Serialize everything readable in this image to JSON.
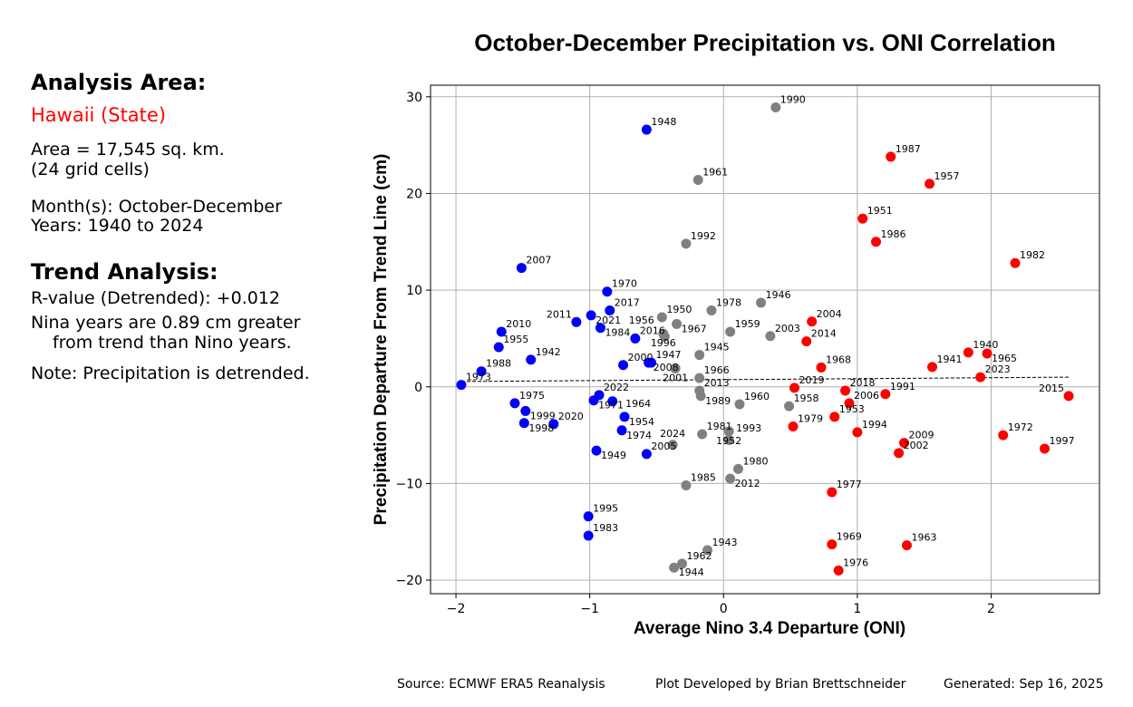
{
  "sidebar": {
    "area_heading": "Analysis Area:",
    "area_name": "Hawaii (State)",
    "area_size": "Area = 17,545 sq. km.",
    "grid_cells": "(24 grid cells)",
    "months": "Month(s): October-December",
    "years": "Years: 1940 to 2024",
    "trend_heading": "Trend Analysis:",
    "r_value": "R-value (Detrended): +0.012",
    "nina_line1": "Nina years are 0.89 cm greater",
    "nina_line2": "from trend than Nino years.",
    "note": "Note: Precipitation is detrended."
  },
  "footer": {
    "source": "Source: ECMWF ERA5 Reanalysis",
    "developer": "Plot Developed by Brian Brettschneider",
    "generated": "Generated: Sep 16, 2025"
  },
  "colors": {
    "nina": "#0000ff",
    "neutral": "#808080",
    "nino": "#ff0000",
    "area_name": "#ff0000"
  },
  "chart_data": {
    "type": "scatter",
    "title": "October-December Precipitation vs. ONI Correlation",
    "xlabel": "Average Nino 3.4 Departure (ONI)",
    "ylabel": "Precipitation Departure From Trend Line (cm)",
    "xlim": [
      -2.19,
      2.81
    ],
    "ylim": [
      -21.4,
      31.2
    ],
    "xticks": [
      -2,
      -1,
      0,
      1,
      2
    ],
    "yticks": [
      -20,
      -10,
      0,
      10,
      20,
      30
    ],
    "grid": true,
    "trend_line": {
      "x": [
        -1.96,
        2.58
      ],
      "y": [
        0.55,
        1.0
      ],
      "style": "dashed"
    },
    "points": [
      {
        "year": "1948",
        "oni": -0.575,
        "precip": 26.6,
        "phase": "nina"
      },
      {
        "year": "2007",
        "oni": -1.51,
        "precip": 12.3,
        "phase": "nina"
      },
      {
        "year": "1970",
        "oni": -0.87,
        "precip": 9.85,
        "phase": "nina"
      },
      {
        "year": "2017",
        "oni": -0.85,
        "precip": 7.9,
        "phase": "nina"
      },
      {
        "year": "2021",
        "oni": -0.99,
        "precip": 7.4,
        "phase": "nina"
      },
      {
        "year": "2011",
        "oni": -1.1,
        "precip": 6.7,
        "phase": "nina"
      },
      {
        "year": "1984",
        "oni": -0.92,
        "precip": 6.1,
        "phase": "nina"
      },
      {
        "year": "2010",
        "oni": -1.66,
        "precip": 5.7,
        "phase": "nina"
      },
      {
        "year": "1955",
        "oni": -1.68,
        "precip": 4.1,
        "phase": "nina"
      },
      {
        "year": "1942",
        "oni": -1.44,
        "precip": 2.8,
        "phase": "nina"
      },
      {
        "year": "1988",
        "oni": -1.81,
        "precip": 1.6,
        "phase": "nina"
      },
      {
        "year": "1973",
        "oni": -1.96,
        "precip": 0.2,
        "phase": "nina"
      },
      {
        "year": "2016",
        "oni": -0.66,
        "precip": 5.0,
        "phase": "nina"
      },
      {
        "year": "2000",
        "oni": -0.75,
        "precip": 2.25,
        "phase": "nina"
      },
      {
        "year": "2008",
        "oni": -0.56,
        "precip": 2.5,
        "phase": "nina"
      },
      {
        "year": "1947",
        "oni": -0.54,
        "precip": 2.5,
        "phase": "nina"
      },
      {
        "year": "1975",
        "oni": -1.56,
        "precip": -1.7,
        "phase": "nina"
      },
      {
        "year": "1999",
        "oni": -1.48,
        "precip": -2.5,
        "phase": "nina"
      },
      {
        "year": "1998",
        "oni": -1.49,
        "precip": -3.75,
        "phase": "nina"
      },
      {
        "year": "2020",
        "oni": -1.27,
        "precip": -3.85,
        "phase": "nina"
      },
      {
        "year": "2022",
        "oni": -0.93,
        "precip": -0.85,
        "phase": "nina"
      },
      {
        "year": "1971",
        "oni": -0.97,
        "precip": -1.4,
        "phase": "nina"
      },
      {
        "year": "1964",
        "oni": -0.83,
        "precip": -1.5,
        "phase": "nina"
      },
      {
        "year": "1954",
        "oni": -0.74,
        "precip": -3.1,
        "phase": "nina"
      },
      {
        "year": "1974",
        "oni": -0.76,
        "precip": -4.5,
        "phase": "nina"
      },
      {
        "year": "1949",
        "oni": -0.95,
        "precip": -6.6,
        "phase": "nina"
      },
      {
        "year": "2005",
        "oni": -0.575,
        "precip": -6.95,
        "phase": "nina"
      },
      {
        "year": "1995",
        "oni": -1.01,
        "precip": -13.4,
        "phase": "nina"
      },
      {
        "year": "1983",
        "oni": -1.01,
        "precip": -15.4,
        "phase": "nina"
      },
      {
        "year": "1990",
        "oni": 0.39,
        "precip": 28.9,
        "phase": "neutral"
      },
      {
        "year": "1961",
        "oni": -0.19,
        "precip": 21.4,
        "phase": "neutral"
      },
      {
        "year": "1992",
        "oni": -0.28,
        "precip": 14.8,
        "phase": "neutral"
      },
      {
        "year": "1946",
        "oni": 0.28,
        "precip": 8.7,
        "phase": "neutral"
      },
      {
        "year": "1978",
        "oni": -0.09,
        "precip": 7.9,
        "phase": "neutral"
      },
      {
        "year": "1950",
        "oni": -0.46,
        "precip": 7.2,
        "phase": "neutral"
      },
      {
        "year": "1967",
        "oni": -0.35,
        "precip": 6.5,
        "phase": "neutral"
      },
      {
        "year": "1996",
        "oni": -0.45,
        "precip": 5.5,
        "phase": "neutral"
      },
      {
        "year": "1956",
        "oni": -0.44,
        "precip": 5.2,
        "phase": "neutral"
      },
      {
        "year": "1959",
        "oni": 0.05,
        "precip": 5.7,
        "phase": "neutral"
      },
      {
        "year": "2003",
        "oni": 0.35,
        "precip": 5.25,
        "phase": "neutral"
      },
      {
        "year": "1945",
        "oni": -0.18,
        "precip": 3.3,
        "phase": "neutral"
      },
      {
        "year": "2001",
        "oni": -0.36,
        "precip": 1.9,
        "phase": "neutral"
      },
      {
        "year": "1966",
        "oni": -0.18,
        "precip": 0.9,
        "phase": "neutral"
      },
      {
        "year": "2013",
        "oni": -0.18,
        "precip": -0.4,
        "phase": "neutral"
      },
      {
        "year": "1989",
        "oni": -0.17,
        "precip": -0.95,
        "phase": "neutral"
      },
      {
        "year": "1960",
        "oni": 0.12,
        "precip": -1.8,
        "phase": "neutral"
      },
      {
        "year": "1958",
        "oni": 0.49,
        "precip": -2.0,
        "phase": "neutral"
      },
      {
        "year": "1981",
        "oni": -0.16,
        "precip": -4.9,
        "phase": "neutral"
      },
      {
        "year": "1952",
        "oni": 0.04,
        "precip": -4.6,
        "phase": "neutral"
      },
      {
        "year": "1993",
        "oni": 0.04,
        "precip": -5.5,
        "phase": "neutral"
      },
      {
        "year": "2024",
        "oni": -0.38,
        "precip": -6.0,
        "phase": "neutral"
      },
      {
        "year": "1980",
        "oni": 0.11,
        "precip": -8.5,
        "phase": "neutral"
      },
      {
        "year": "2012",
        "oni": 0.05,
        "precip": -9.5,
        "phase": "neutral"
      },
      {
        "year": "1985",
        "oni": -0.28,
        "precip": -10.2,
        "phase": "neutral"
      },
      {
        "year": "1943",
        "oni": -0.12,
        "precip": -16.9,
        "phase": "neutral"
      },
      {
        "year": "1962",
        "oni": -0.31,
        "precip": -18.3,
        "phase": "neutral"
      },
      {
        "year": "1944",
        "oni": -0.37,
        "precip": -18.7,
        "phase": "neutral"
      },
      {
        "year": "1987",
        "oni": 1.25,
        "precip": 23.8,
        "phase": "nino"
      },
      {
        "year": "1957",
        "oni": 1.54,
        "precip": 21.0,
        "phase": "nino"
      },
      {
        "year": "1951",
        "oni": 1.04,
        "precip": 17.4,
        "phase": "nino"
      },
      {
        "year": "1986",
        "oni": 1.14,
        "precip": 15.0,
        "phase": "nino"
      },
      {
        "year": "1982",
        "oni": 2.18,
        "precip": 12.8,
        "phase": "nino"
      },
      {
        "year": "2004",
        "oni": 0.66,
        "precip": 6.75,
        "phase": "nino"
      },
      {
        "year": "2014",
        "oni": 0.62,
        "precip": 4.7,
        "phase": "nino"
      },
      {
        "year": "1968",
        "oni": 0.73,
        "precip": 2.0,
        "phase": "nino"
      },
      {
        "year": "1941",
        "oni": 1.56,
        "precip": 2.05,
        "phase": "nino"
      },
      {
        "year": "1940",
        "oni": 1.83,
        "precip": 3.55,
        "phase": "nino"
      },
      {
        "year": "1965",
        "oni": 1.97,
        "precip": 3.45,
        "phase": "nino"
      },
      {
        "year": "2023",
        "oni": 1.92,
        "precip": 1.0,
        "phase": "nino"
      },
      {
        "year": "2015",
        "oni": 2.58,
        "precip": -0.95,
        "phase": "nino"
      },
      {
        "year": "2019",
        "oni": 0.53,
        "precip": -0.1,
        "phase": "nino"
      },
      {
        "year": "2018",
        "oni": 0.91,
        "precip": -0.4,
        "phase": "nino"
      },
      {
        "year": "2006",
        "oni": 0.94,
        "precip": -1.7,
        "phase": "nino"
      },
      {
        "year": "1991",
        "oni": 1.21,
        "precip": -0.75,
        "phase": "nino"
      },
      {
        "year": "1953",
        "oni": 0.83,
        "precip": -3.1,
        "phase": "nino"
      },
      {
        "year": "1979",
        "oni": 0.52,
        "precip": -4.1,
        "phase": "nino"
      },
      {
        "year": "1994",
        "oni": 1.0,
        "precip": -4.7,
        "phase": "nino"
      },
      {
        "year": "2009",
        "oni": 1.35,
        "precip": -5.8,
        "phase": "nino"
      },
      {
        "year": "2002",
        "oni": 1.31,
        "precip": -6.85,
        "phase": "nino"
      },
      {
        "year": "1972",
        "oni": 2.09,
        "precip": -5.0,
        "phase": "nino"
      },
      {
        "year": "1997",
        "oni": 2.4,
        "precip": -6.4,
        "phase": "nino"
      },
      {
        "year": "1977",
        "oni": 0.81,
        "precip": -10.9,
        "phase": "nino"
      },
      {
        "year": "1969",
        "oni": 0.81,
        "precip": -16.3,
        "phase": "nino"
      },
      {
        "year": "1963",
        "oni": 1.37,
        "precip": -16.4,
        "phase": "nino"
      },
      {
        "year": "1976",
        "oni": 0.86,
        "precip": -19.0,
        "phase": "nino"
      }
    ]
  }
}
